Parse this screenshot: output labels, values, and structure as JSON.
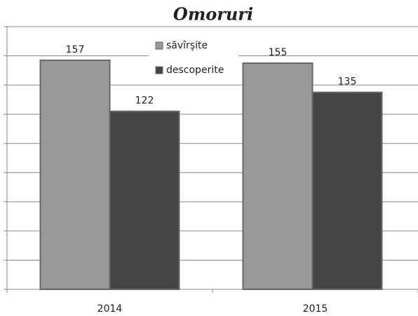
{
  "chart_data": {
    "type": "bar",
    "title": "Omoruri",
    "categories": [
      "2014",
      "2015"
    ],
    "series": [
      {
        "name": "săvîrşite",
        "color": "#999999",
        "values": [
          157,
          155
        ]
      },
      {
        "name": "descoperite",
        "color": "#454545",
        "values": [
          122,
          135
        ]
      }
    ],
    "ylim": [
      0,
      180
    ],
    "yticks": [
      0,
      20,
      40,
      60,
      80,
      100,
      120,
      140,
      160,
      180
    ],
    "grid": true
  }
}
